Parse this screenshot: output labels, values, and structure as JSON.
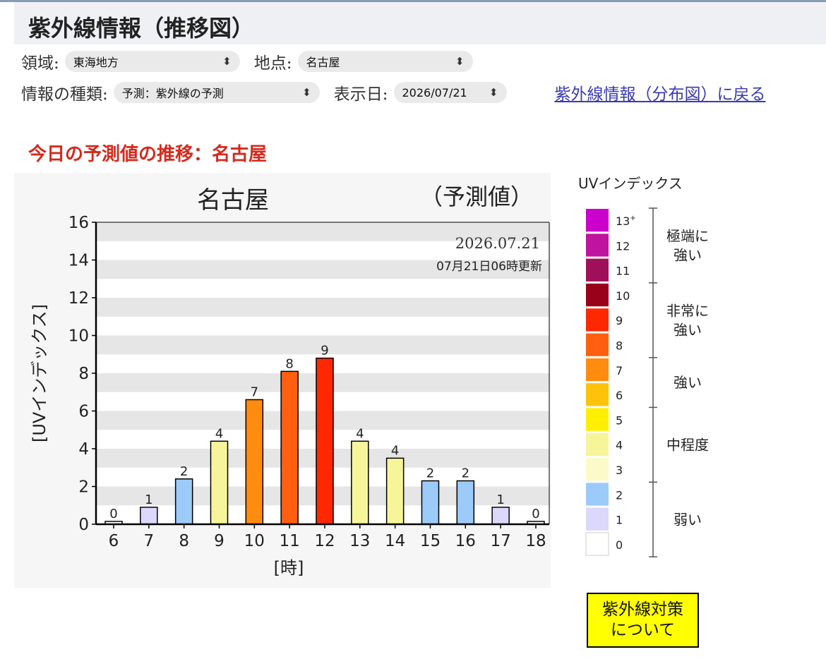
{
  "page": {
    "title": "紫外線情報（推移図）",
    "subtitle": "今日の予測値の推移：名古屋"
  },
  "form": {
    "region_label": "領域:",
    "region_value": "東海地方",
    "point_label": "地点:",
    "point_value": "名古屋",
    "info_type_label": "情報の種類:",
    "info_type_value": "予測：紫外線の予測",
    "date_label": "表示日:",
    "date_value": "2026/07/21",
    "back_link": "紫外線情報（分布図）に戻る"
  },
  "chart_data": {
    "type": "bar",
    "title": "名古屋",
    "subtitle": "（予測値）",
    "date_text": "2026.07.21",
    "update_text": "07月21日06時更新",
    "xlabel": "[時]",
    "ylabel": "[UVインデックス]",
    "categories": [
      "6",
      "7",
      "8",
      "9",
      "10",
      "11",
      "12",
      "13",
      "14",
      "15",
      "16",
      "17",
      "18"
    ],
    "values": [
      0,
      1,
      2,
      4,
      7,
      8,
      9,
      4,
      4,
      2,
      2,
      1,
      0
    ],
    "value_labels": [
      "0",
      "1",
      "2",
      "4",
      "7",
      "8",
      "9",
      "4",
      "4",
      "2",
      "2",
      "1",
      "0"
    ],
    "display_values": [
      0.15,
      0.9,
      2.4,
      4.4,
      6.6,
      8.1,
      8.8,
      4.4,
      3.5,
      2.3,
      2.3,
      0.9,
      0.15
    ],
    "ylim": [
      0,
      16
    ],
    "yticks": [
      "0",
      "2",
      "4",
      "6",
      "8",
      "10",
      "12",
      "14",
      "16"
    ],
    "grid": true
  },
  "legend": {
    "title": "UVインデックス",
    "levels": [
      {
        "label": "13+",
        "color": "#cc00cc"
      },
      {
        "label": "12",
        "color": "#c0139f"
      },
      {
        "label": "11",
        "color": "#a0105a"
      },
      {
        "label": "10",
        "color": "#99001a"
      },
      {
        "label": "9",
        "color": "#ff2800"
      },
      {
        "label": "8",
        "color": "#ff5f0f"
      },
      {
        "label": "7",
        "color": "#ff8c0f"
      },
      {
        "label": "6",
        "color": "#ffc20a"
      },
      {
        "label": "5",
        "color": "#ffee00"
      },
      {
        "label": "4",
        "color": "#f7f59a"
      },
      {
        "label": "3",
        "color": "#fbfac8"
      },
      {
        "label": "2",
        "color": "#9ccbfa"
      },
      {
        "label": "1",
        "color": "#dcd8fb"
      },
      {
        "label": "0",
        "color": "#ffffff"
      }
    ],
    "groups": [
      {
        "lines": [
          "極端に",
          "強い"
        ]
      },
      {
        "lines": [
          "非常に",
          "強い"
        ]
      },
      {
        "lines": [
          "強い"
        ]
      },
      {
        "lines": [
          "中程度"
        ]
      },
      {
        "lines": [
          "弱い"
        ]
      }
    ]
  },
  "uv_button": {
    "line1": "紫外線対策",
    "line2": "について"
  }
}
